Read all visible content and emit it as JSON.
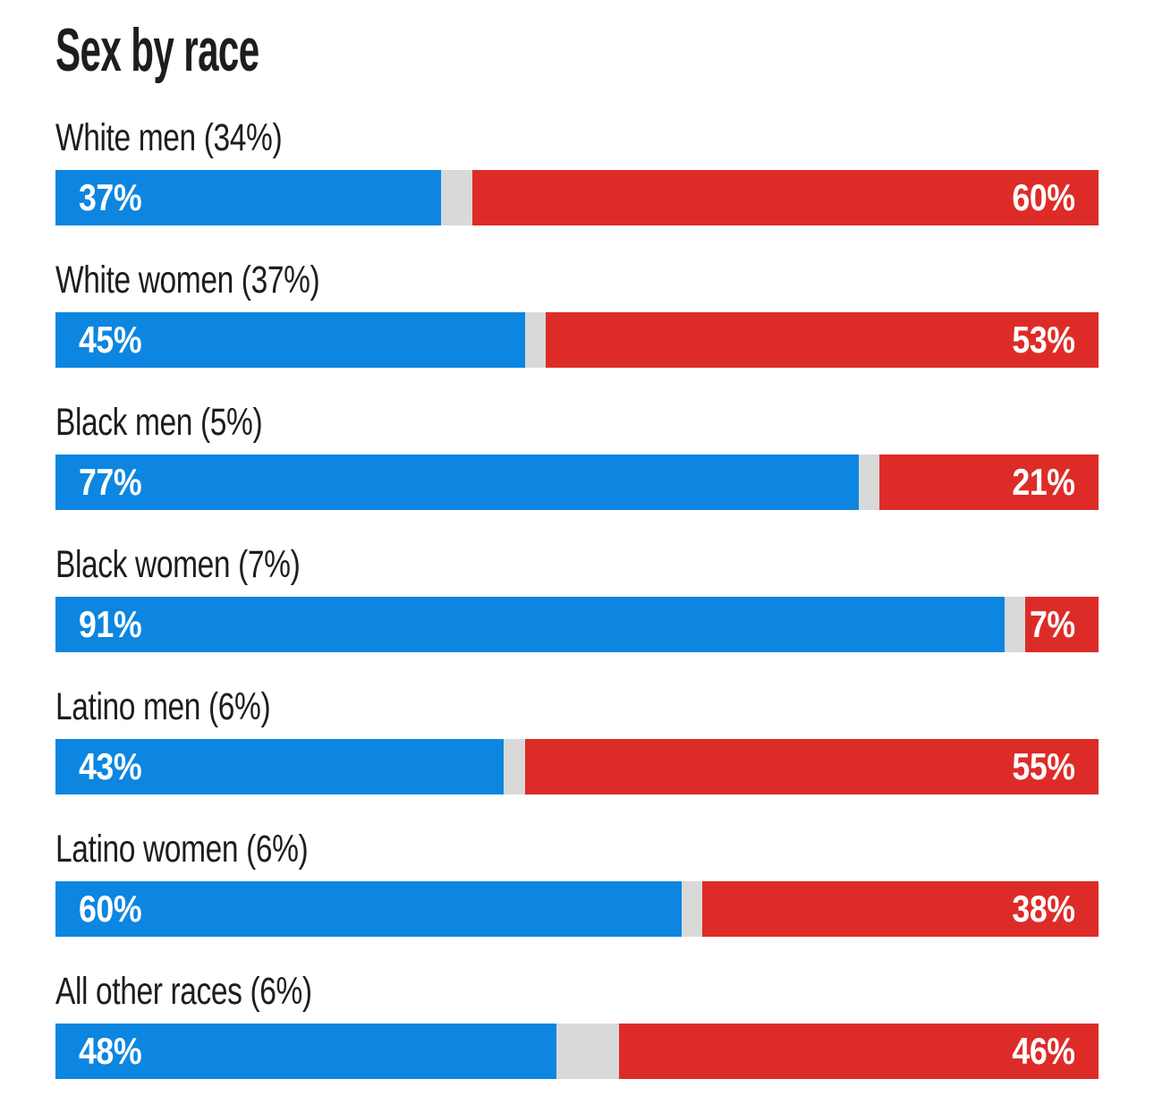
{
  "title": "Sex by race",
  "colors": {
    "dem": "#0c86e0",
    "rep": "#dd2c28",
    "gap": "#d8dad9",
    "text": "#1d1d1d",
    "value_text": "#ffffff",
    "background": "#ffffff"
  },
  "chart_data": {
    "type": "bar",
    "orientation": "horizontal",
    "stacked": true,
    "title": "Sex by race",
    "unit": "percent",
    "axis_range": [
      0,
      100
    ],
    "grid": false,
    "legend": "none",
    "series_names": [
      "blue",
      "red"
    ],
    "gap_note": "light gray middle segment equals 100 minus blue minus red",
    "rows": [
      {
        "label": "White men (34%)",
        "dem": 37,
        "rep": 60,
        "dem_label": "37%",
        "rep_label": "60%"
      },
      {
        "label": "White women (37%)",
        "dem": 45,
        "rep": 53,
        "dem_label": "45%",
        "rep_label": "53%"
      },
      {
        "label": "Black men (5%)",
        "dem": 77,
        "rep": 21,
        "dem_label": "77%",
        "rep_label": "21%"
      },
      {
        "label": "Black women (7%)",
        "dem": 91,
        "rep": 7,
        "dem_label": "91%",
        "rep_label": "7%"
      },
      {
        "label": "Latino men (6%)",
        "dem": 43,
        "rep": 55,
        "dem_label": "43%",
        "rep_label": "55%"
      },
      {
        "label": "Latino women (6%)",
        "dem": 60,
        "rep": 38,
        "dem_label": "60%",
        "rep_label": "38%"
      },
      {
        "label": "All other races (6%)",
        "dem": 48,
        "rep": 46,
        "dem_label": "48%",
        "rep_label": "46%"
      }
    ]
  }
}
